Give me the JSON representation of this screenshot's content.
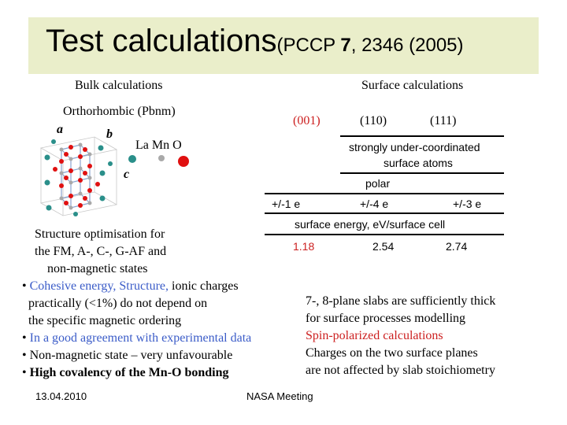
{
  "title": {
    "main": "Test calculations",
    "ref_open": "(PCCP ",
    "ref_volume": "7",
    "ref_close": ", 2346 (2005)"
  },
  "bulk": {
    "heading": "Bulk calculations",
    "structure": "Orthorhombic (Pbnm)",
    "axis_a": "a",
    "axis_b": "b",
    "axis_c": "c",
    "legend": "La Mn O",
    "atom_colors": {
      "La": "#2a8f8a",
      "Mn": "#a9a9a9",
      "O": "#e01010"
    },
    "description": [
      "Structure optimisation for",
      "the FM, A-, C-, G-AF and",
      "non-magnetic states"
    ],
    "bullets": [
      {
        "blue": "Cohesive energy, Structure,",
        "black": " ionic charges"
      },
      {
        "black": "practically (<1%)  do not depend on"
      },
      {
        "black": "the specific magnetic ordering"
      },
      {
        "blue": "In a good agreement with experimental data"
      },
      {
        "black": "Non-magnetic state – very unfavourable"
      },
      {
        "bold": "High covalency of the Mn-O bonding"
      }
    ]
  },
  "surface": {
    "heading": "Surface calculations",
    "planes": [
      "(001)",
      "(110)",
      "(111)"
    ],
    "note_line1": "strongly under-coordinated",
    "note_line2": "surface atoms",
    "polar": "polar",
    "charges": [
      "+/-1 e",
      "+/-4 e",
      "+/-3 e"
    ],
    "energy_label": "surface energy, eV/surface cell",
    "energies": [
      "1.18",
      "2.54",
      "2.74"
    ],
    "notes": [
      {
        "text": "7-, 8-plane slabs are sufficiently thick",
        "color": "black"
      },
      {
        "text": "for surface processes modelling",
        "color": "black"
      },
      {
        "text": "Spin-polarized calculations",
        "color": "red"
      },
      {
        "text": "Charges on the two surface planes",
        "color": "black"
      },
      {
        "text": "are not affected by slab stoichiometry",
        "color": "black"
      }
    ]
  },
  "footer": {
    "date": "13.04.2010",
    "meeting": "NASA Meeting"
  }
}
